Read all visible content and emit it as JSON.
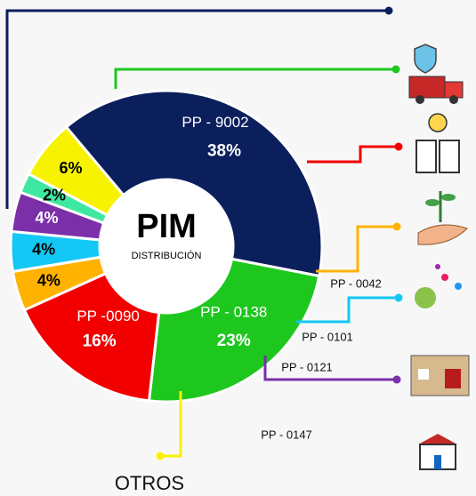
{
  "chart_data": {
    "type": "donut",
    "center_title": "PIM",
    "center_subtitle": "DISTRIBUCIÓN",
    "categories": [
      "PP - 9002",
      "PP - 0138",
      "PP -0090",
      "PP - 0042",
      "PP - 0101",
      "PP - 0121",
      "PP - 0147",
      "OTROS"
    ],
    "values": [
      38,
      23,
      16,
      4,
      4,
      4,
      2,
      6
    ],
    "value_labels": [
      "38%",
      "23%",
      "16%",
      "4%",
      "4%",
      "4%",
      "2%",
      "6%"
    ],
    "colors": [
      "#0b1f5c",
      "#1ec71e",
      "#f20000",
      "#ffb300",
      "#14c8f5",
      "#7b2fa8",
      "#3ee8a0",
      "#f7f300"
    ]
  }
}
